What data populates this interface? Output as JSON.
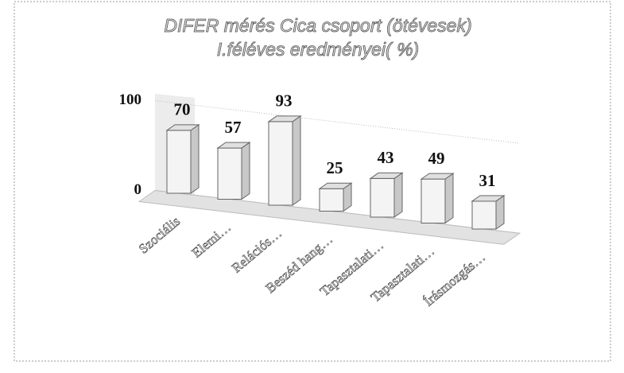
{
  "chart_data": {
    "type": "bar",
    "title": [
      "DIFER mérés Cica csoport (ötévesek)",
      "I.féléves eredményei( %)"
    ],
    "categories": [
      "Szociális",
      "Elemi…",
      "Relációs…",
      "Beszéd hang…",
      "Tapasztalati…",
      "Tapasztalati…",
      "Írásmozgás…"
    ],
    "values": [
      70,
      57,
      93,
      25,
      43,
      49,
      31
    ],
    "color": "#f4f4f4",
    "ylim": [
      0,
      100
    ],
    "yticks": [
      0,
      100
    ],
    "grid": true
  }
}
